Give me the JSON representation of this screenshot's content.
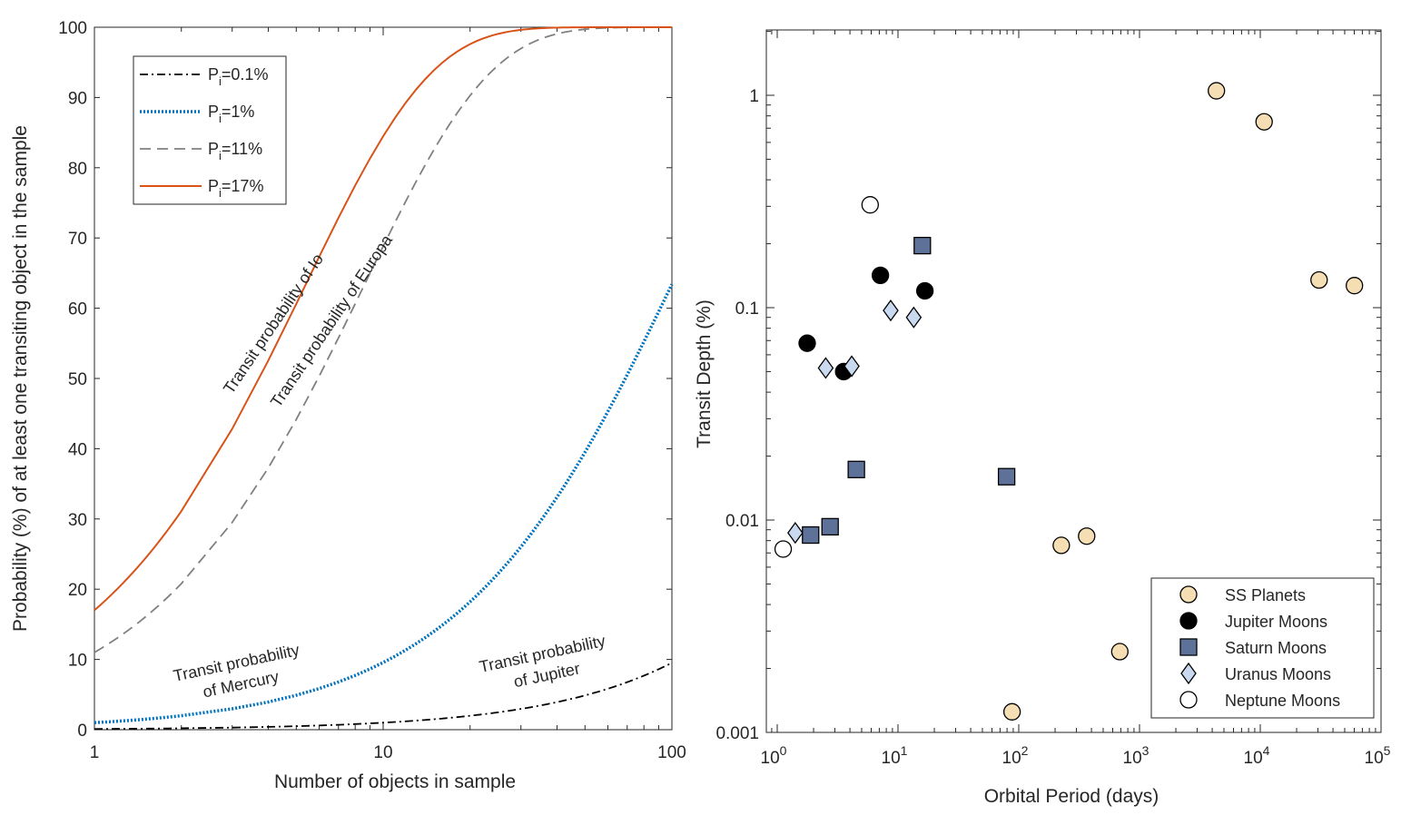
{
  "chart_data": [
    {
      "type": "line",
      "xscale": "log",
      "xlim": [
        1,
        100
      ],
      "ylim": [
        0,
        100
      ],
      "xlabel": "Number of objects in sample",
      "ylabel": "Probability (%) of at least one transiting object in the sample",
      "xticks": [
        {
          "value": 1,
          "label": "1"
        },
        {
          "value": 10,
          "label": "10"
        },
        {
          "value": 100,
          "label": "100"
        }
      ],
      "yticks": [
        0,
        10,
        20,
        30,
        40,
        50,
        60,
        70,
        80,
        90,
        100
      ],
      "legend_position": "top-left",
      "series": [
        {
          "name": "Pi=0.1%",
          "legend_main": "P",
          "legend_sub": "i",
          "legend_rest": "=0.1%",
          "p": 0.1,
          "color": "#000000",
          "style": "dashdot"
        },
        {
          "name": "Pi=1%",
          "legend_main": "P",
          "legend_sub": "i",
          "legend_rest": "=1%",
          "p": 1,
          "color": "#0072BD",
          "style": "dotted"
        },
        {
          "name": "Pi=11%",
          "legend_main": "P",
          "legend_sub": "i",
          "legend_rest": "=11%",
          "p": 11,
          "color": "#808080",
          "style": "dashed"
        },
        {
          "name": "Pi=17%",
          "legend_main": "P",
          "legend_sub": "i",
          "legend_rest": "=17%",
          "p": 17,
          "color": "#D95319",
          "style": "solid"
        }
      ],
      "annotations": [
        {
          "lines": [
            "Transit probability of Io"
          ],
          "rotation": -56
        },
        {
          "lines": [
            "Transit probability of Europa"
          ],
          "rotation": -56
        },
        {
          "lines": [
            "Transit probability",
            "of Mercury"
          ],
          "rotation": -12
        },
        {
          "lines": [
            "Transit probability",
            "of Jupiter"
          ],
          "rotation": -12
        }
      ]
    },
    {
      "type": "scatter",
      "xscale": "log",
      "yscale": "log",
      "xlim": [
        0.7,
        100000
      ],
      "ylim": [
        0.001,
        2
      ],
      "xlabel": "Orbital Period (days)",
      "ylabel": "Transit Depth (%)",
      "xticks": [
        {
          "base": "10",
          "exp": "0"
        },
        {
          "base": "10",
          "exp": "1"
        },
        {
          "base": "10",
          "exp": "2"
        },
        {
          "base": "10",
          "exp": "3"
        },
        {
          "base": "10",
          "exp": "4"
        },
        {
          "base": "10",
          "exp": "5"
        }
      ],
      "yticks": [
        {
          "value": 0.001,
          "label": "0.001"
        },
        {
          "value": 0.01,
          "label": "0.01"
        },
        {
          "value": 0.1,
          "label": "0.1"
        },
        {
          "value": 1,
          "label": "1"
        }
      ],
      "legend_position": "bottom-right",
      "series": [
        {
          "name": "SS Planets",
          "marker": "circle",
          "fill": "#F5DEB3",
          "stroke": "#000000",
          "points": [
            [
              88,
              0.00125
            ],
            [
              225,
              0.0076
            ],
            [
              365,
              0.0084
            ],
            [
              687,
              0.0024
            ],
            [
              4333,
              1.05
            ],
            [
              10759,
              0.75
            ],
            [
              30687,
              0.135
            ],
            [
              60190,
              0.127
            ]
          ]
        },
        {
          "name": "Jupiter Moons",
          "marker": "circle",
          "fill": "#000000",
          "stroke": "#000000",
          "points": [
            [
              1.77,
              0.068
            ],
            [
              3.55,
              0.05
            ],
            [
              7.15,
              0.142
            ],
            [
              16.7,
              0.12
            ]
          ]
        },
        {
          "name": "Saturn Moons",
          "marker": "square",
          "fill": "#5E7199",
          "stroke": "#000000",
          "points": [
            [
              1.89,
              0.0085
            ],
            [
              2.74,
              0.0093
            ],
            [
              4.52,
              0.0173
            ],
            [
              15.9,
              0.196
            ],
            [
              79.3,
              0.016
            ]
          ]
        },
        {
          "name": "Uranus Moons",
          "marker": "diamond",
          "fill": "#C9DAF0",
          "stroke": "#000000",
          "points": [
            [
              1.41,
              0.0087
            ],
            [
              2.52,
              0.052
            ],
            [
              4.14,
              0.053
            ],
            [
              8.7,
              0.097
            ],
            [
              13.5,
              0.09
            ]
          ]
        },
        {
          "name": "Neptune Moons",
          "marker": "circle",
          "fill": "#FFFFFF",
          "stroke": "#000000",
          "points": [
            [
              1.12,
              0.0073
            ],
            [
              5.88,
              0.305
            ]
          ]
        }
      ]
    }
  ]
}
